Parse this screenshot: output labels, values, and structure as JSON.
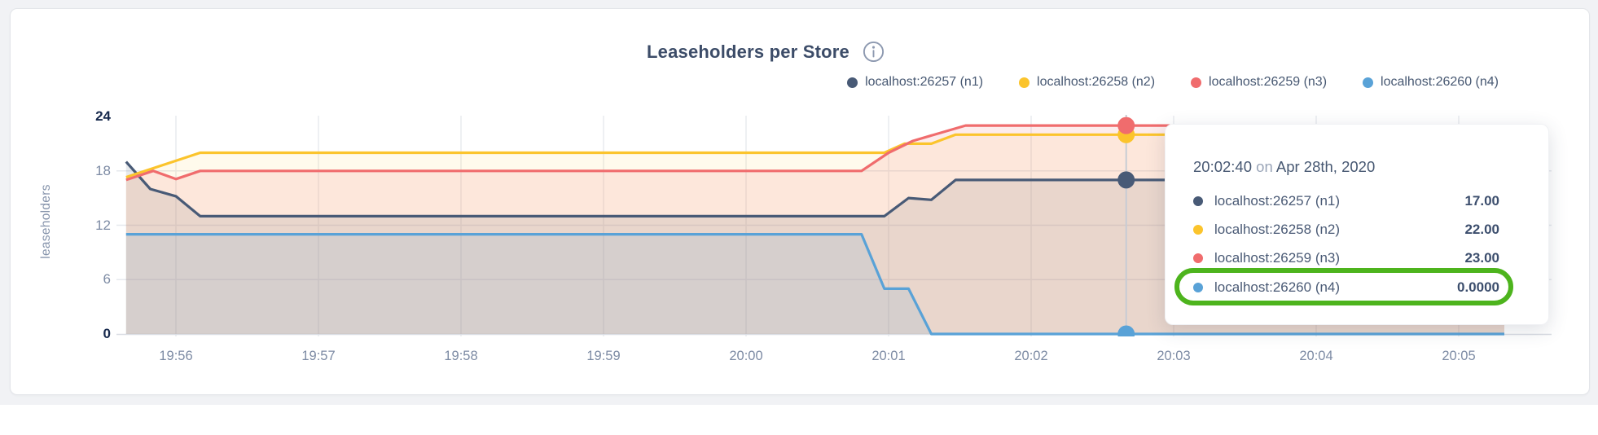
{
  "chart": {
    "title": "Leaseholders per Store",
    "ylabel": "leaseholders"
  },
  "chart_data": {
    "type": "area",
    "title": "Leaseholders per Store",
    "ylabel": "leaseholders",
    "ylim": [
      0,
      24
    ],
    "yticks": [
      0,
      6,
      12,
      18,
      24
    ],
    "grid": true,
    "legend_position": "top-right",
    "xticks": [
      "19:56",
      "19:57",
      "19:58",
      "19:59",
      "20:00",
      "20:01",
      "20:02",
      "20:03",
      "20:04",
      "20:05"
    ],
    "x_unit": "minutes relative to 19:56",
    "x_domain_minutes": [
      -0.35,
      9.32
    ],
    "hover": {
      "time_label": "20:02:40",
      "t": 6.667,
      "values": [
        17,
        22,
        23,
        0
      ]
    },
    "series": [
      {
        "name": "localhost:26257 (n1)",
        "color": "#485a76",
        "fill_opacity": 0.13,
        "points": [
          [
            -0.35,
            19
          ],
          [
            -0.18,
            16
          ],
          [
            0,
            15.2
          ],
          [
            0.17,
            13
          ],
          [
            4.97,
            13
          ],
          [
            5.14,
            15
          ],
          [
            5.3,
            14.8
          ],
          [
            5.47,
            17
          ],
          [
            9.32,
            17
          ]
        ]
      },
      {
        "name": "localhost:26258 (n2)",
        "color": "#fbc42c",
        "fill_opacity": 0.09,
        "points": [
          [
            -0.35,
            17.3
          ],
          [
            0.17,
            20
          ],
          [
            4.97,
            20
          ],
          [
            5.11,
            21
          ],
          [
            5.3,
            21
          ],
          [
            5.47,
            22
          ],
          [
            9.32,
            22
          ]
        ]
      },
      {
        "name": "localhost:26259 (n3)",
        "color": "#f06c6d",
        "fill_opacity": 0.13,
        "points": [
          [
            -0.35,
            17
          ],
          [
            -0.16,
            18
          ],
          [
            0,
            17.1
          ],
          [
            0.17,
            18
          ],
          [
            4.81,
            18
          ],
          [
            5.0,
            20
          ],
          [
            5.17,
            21.3
          ],
          [
            5.54,
            23
          ],
          [
            9.32,
            23
          ]
        ]
      },
      {
        "name": "localhost:26260 (n4)",
        "color": "#59a2d7",
        "fill_opacity": 0.13,
        "points": [
          [
            -0.35,
            11
          ],
          [
            4.81,
            11
          ],
          [
            4.97,
            5
          ],
          [
            5.14,
            5
          ],
          [
            5.3,
            0
          ],
          [
            9.32,
            0
          ]
        ]
      }
    ]
  },
  "tooltip": {
    "time": "20:02:40",
    "on_word": "on",
    "date": "Apr 28th, 2020",
    "rows": [
      {
        "label": "localhost:26257 (n1)",
        "value": "17.00",
        "color": "#485a76"
      },
      {
        "label": "localhost:26258 (n2)",
        "value": "22.00",
        "color": "#fbc42c"
      },
      {
        "label": "localhost:26259 (n3)",
        "value": "23.00",
        "color": "#f06c6d"
      },
      {
        "label": "localhost:26260 (n4)",
        "value": "0.0000",
        "color": "#59a2d7"
      }
    ],
    "highlighted_row_index": 3
  },
  "annotation": {
    "color": "#4db41d"
  }
}
